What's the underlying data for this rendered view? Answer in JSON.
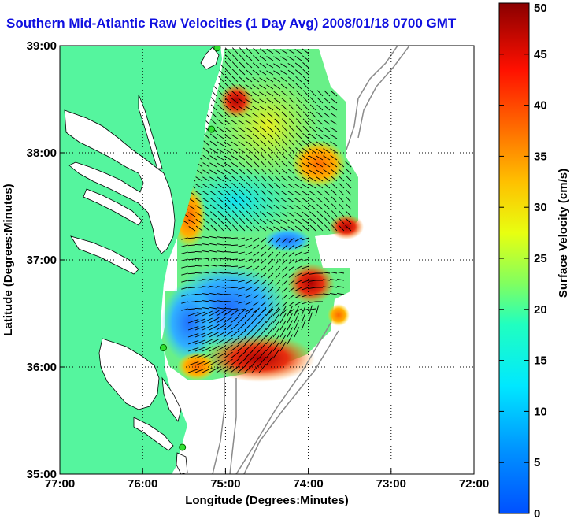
{
  "chart_data": {
    "type": "heatmap",
    "title": "Southern Mid-Atlantic Raw Velocities (1 Day Avg) 2008/01/18 0700 GMT",
    "xlabel": "Longitude (Degrees:Minutes)",
    "ylabel": "Latitude (Degrees:Minutes)",
    "xlim": [
      -77,
      -72
    ],
    "ylim": [
      35,
      39
    ],
    "x_ticks": [
      {
        "value": -77,
        "label": "77:00"
      },
      {
        "value": -76,
        "label": "76:00"
      },
      {
        "value": -75,
        "label": "75:00"
      },
      {
        "value": -74,
        "label": "74:00"
      },
      {
        "value": -73,
        "label": "73:00"
      },
      {
        "value": -72,
        "label": "72:00"
      }
    ],
    "y_ticks": [
      {
        "value": 35,
        "label": "35:00"
      },
      {
        "value": 36,
        "label": "36:00"
      },
      {
        "value": 37,
        "label": "37:00"
      },
      {
        "value": 38,
        "label": "38:00"
      },
      {
        "value": 39,
        "label": "39:00"
      }
    ],
    "grid": "dotted",
    "colorbar": {
      "label": "Surface Velocity (cm/s)",
      "min": 0,
      "max": 50,
      "ticks": [
        0,
        5,
        10,
        15,
        20,
        25,
        30,
        35,
        40,
        45,
        50
      ],
      "colormap": "jet"
    },
    "radar_sites": [
      {
        "lon": -75.1,
        "lat": 38.98
      },
      {
        "lon": -75.17,
        "lat": 38.22
      },
      {
        "lon": -75.75,
        "lat": 36.18
      },
      {
        "lon": -75.52,
        "lat": 35.25
      }
    ],
    "velocity_hotspots": [
      {
        "lon": -74.9,
        "lat": 38.5,
        "speed": 45
      },
      {
        "lon": -73.75,
        "lat": 37.3,
        "speed": 45
      },
      {
        "lon": -74.25,
        "lat": 36.8,
        "speed": 50
      },
      {
        "lon": -74.6,
        "lat": 36.2,
        "speed": 40
      },
      {
        "lon": -75.1,
        "lat": 36.0,
        "speed": 38
      },
      {
        "lon": -75.6,
        "lat": 37.0,
        "speed": 30
      }
    ],
    "colors": {
      "land": "#55f59e",
      "water": "#ffffff",
      "title": "#1010e0",
      "bathymetry": "#8a8a8a"
    }
  }
}
